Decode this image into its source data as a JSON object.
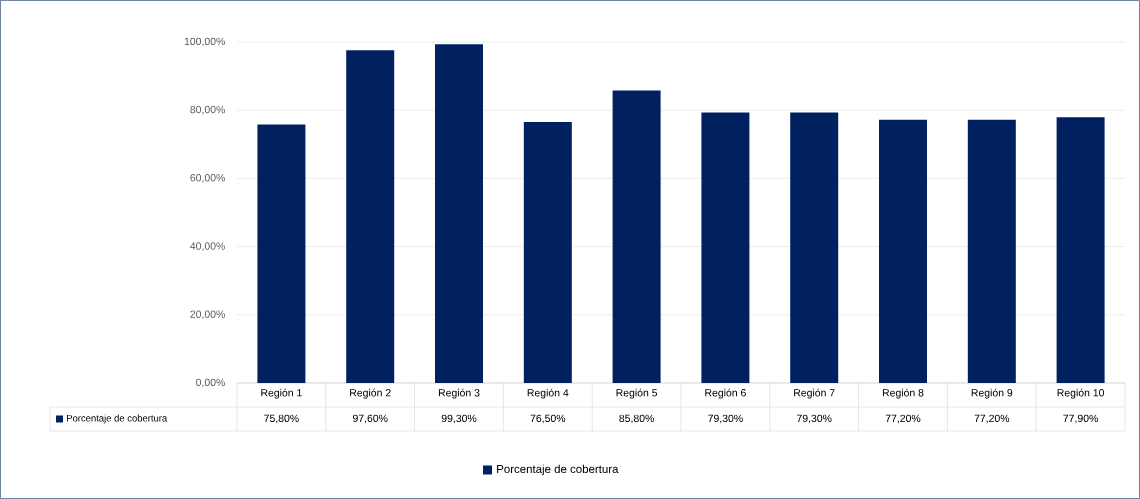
{
  "chart_data": {
    "type": "bar",
    "categories": [
      "Región 1",
      "Región 2",
      "Región 3",
      "Región 4",
      "Región 5",
      "Región 6",
      "Región 7",
      "Región 8",
      "Región 9",
      "Región 10"
    ],
    "series": [
      {
        "name": "Porcentaje de cobertura",
        "color": "#002060",
        "values": [
          75.8,
          97.6,
          99.3,
          76.5,
          85.8,
          79.3,
          79.3,
          77.2,
          77.2,
          77.9
        ],
        "value_labels": [
          "75,80%",
          "97,60%",
          "99,30%",
          "76,50%",
          "85,80%",
          "79,30%",
          "79,30%",
          "77,20%",
          "77,20%",
          "77,90%"
        ]
      }
    ],
    "ylim": [
      0,
      100
    ],
    "yticks": [
      {
        "value": 0,
        "label": "0,00%"
      },
      {
        "value": 20,
        "label": "20,00%"
      },
      {
        "value": 40,
        "label": "40,00%"
      },
      {
        "value": 60,
        "label": "60,00%"
      },
      {
        "value": 80,
        "label": "80,00%"
      },
      {
        "value": 100,
        "label": "100,00%"
      }
    ],
    "grid": "y",
    "legend": "bottom"
  }
}
